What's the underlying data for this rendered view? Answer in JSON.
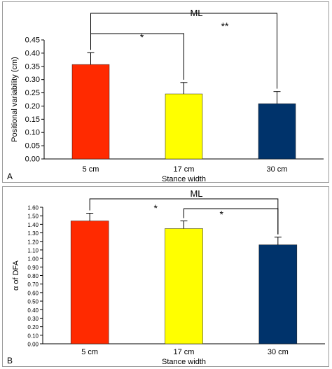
{
  "chart_data": [
    {
      "panel_label": "A",
      "type": "bar",
      "title": "ML",
      "xlabel": "Stance width",
      "ylabel": "Positional variability (cm)",
      "categories": [
        "5 cm",
        "17 cm",
        "30 cm"
      ],
      "values": [
        0.357,
        0.246,
        0.209
      ],
      "errors": [
        0.045,
        0.043,
        0.046
      ],
      "colors": [
        "#ff2a00",
        "#ffff00",
        "#00336b"
      ],
      "ylim": [
        0,
        0.45
      ],
      "yticks": [
        "0.00",
        "0.05",
        "0.10",
        "0.15",
        "0.20",
        "0.25",
        "0.30",
        "0.35",
        "0.40",
        "0.45"
      ],
      "significance": [
        {
          "from": "5 cm",
          "to": "17 cm",
          "label": "*"
        },
        {
          "from": "5 cm",
          "to": "30 cm",
          "label": "**"
        }
      ],
      "grid": false
    },
    {
      "panel_label": "B",
      "type": "bar",
      "title": "ML",
      "xlabel": "Stance width",
      "ylabel": "α of DFA",
      "categories": [
        "5 cm",
        "17 cm",
        "30 cm"
      ],
      "values": [
        1.44,
        1.35,
        1.16
      ],
      "errors": [
        0.09,
        0.09,
        0.09
      ],
      "colors": [
        "#ff2a00",
        "#ffff00",
        "#00336b"
      ],
      "ylim": [
        0,
        1.6
      ],
      "yticks": [
        "0.00",
        "0.10",
        "0.20",
        "0.30",
        "0.40",
        "0.50",
        "0.60",
        "0.70",
        "0.80",
        "0.90",
        "1.00",
        "1.10",
        "1.20",
        "1.30",
        "1.40",
        "1.50",
        "1.60"
      ],
      "significance": [
        {
          "from": "5 cm",
          "to": "30 cm",
          "label": "*"
        },
        {
          "from": "17 cm",
          "to": "30 cm",
          "label": "*"
        }
      ],
      "grid": false
    }
  ]
}
